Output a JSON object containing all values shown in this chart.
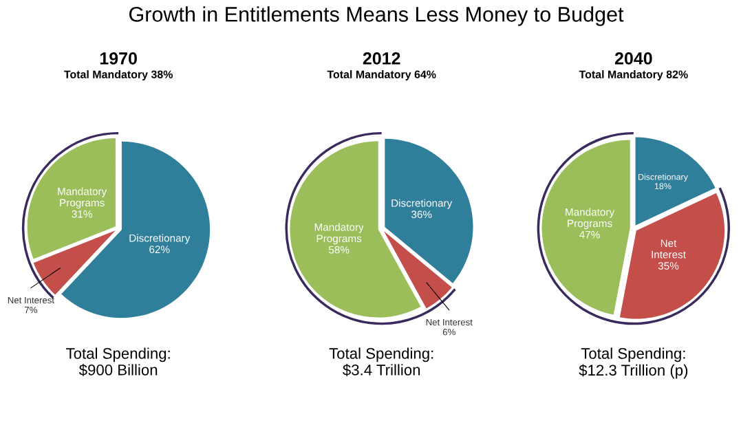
{
  "chart_data": [
    {
      "type": "pie",
      "title": "1970",
      "subtitle": "Total Mandatory 38%",
      "categories": [
        "Discretionary",
        "Net Interest",
        "Mandatory\nPrograms"
      ],
      "values": [
        62,
        7,
        31
      ],
      "value_labels": [
        "62%",
        "7%",
        "31%"
      ],
      "colors": [
        "#2f7f9b",
        "#c44e4a",
        "#9bbd5a"
      ],
      "annotations": [
        "Growth in Entitlements Means Less Money to Budget",
        "Total Spending:\n$900 Billion"
      ]
    },
    {
      "type": "pie",
      "title": "2012",
      "subtitle": "Total Mandatory 64%",
      "categories": [
        "Discretionary",
        "Net Interest",
        "Mandatory\nPrograms"
      ],
      "values": [
        36,
        6,
        58
      ],
      "value_labels": [
        "36%",
        "6%",
        "58%"
      ],
      "colors": [
        "#2f7f9b",
        "#c44e4a",
        "#9bbd5a"
      ],
      "annotations": [
        "Total Spending:\n$3.4 Trillion"
      ]
    },
    {
      "type": "pie",
      "title": "2040",
      "subtitle": "Total Mandatory 82%",
      "categories": [
        "Discretionary",
        "Net\nInterest",
        "Mandatory\nPrograms"
      ],
      "values": [
        18,
        35,
        47
      ],
      "value_labels": [
        "18%",
        "35%",
        "47%"
      ],
      "colors": [
        "#2f7f9b",
        "#c44e4a",
        "#9bbd5a"
      ],
      "annotations": [
        "Total Spending:\n$12.3 Trillion (p)"
      ]
    }
  ]
}
